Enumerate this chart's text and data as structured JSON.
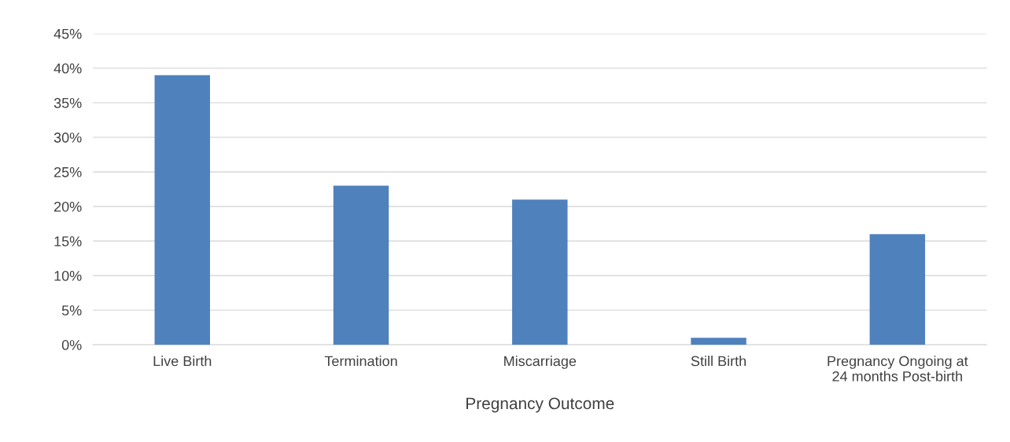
{
  "chart_data": {
    "type": "bar",
    "xlabel": "Pregnancy Outcome",
    "categories": [
      "Live Birth",
      "Termination",
      "Miscarriage",
      "Still Birth",
      "Pregnancy Ongoing at\n24 months Post-birth"
    ],
    "values": [
      39,
      23,
      21,
      1,
      16
    ],
    "color": "#4f81bd",
    "ylim": [
      0,
      45
    ],
    "yticks": [
      {
        "value": 0,
        "label": "0%"
      },
      {
        "value": 5,
        "label": "5%"
      },
      {
        "value": 10,
        "label": "10%"
      },
      {
        "value": 15,
        "label": "15%"
      },
      {
        "value": 20,
        "label": "20%"
      },
      {
        "value": 25,
        "label": "25%"
      },
      {
        "value": 30,
        "label": "30%"
      },
      {
        "value": 35,
        "label": "35%"
      },
      {
        "value": 40,
        "label": "40%"
      },
      {
        "value": 45,
        "label": "45%"
      }
    ],
    "grid": "y"
  }
}
